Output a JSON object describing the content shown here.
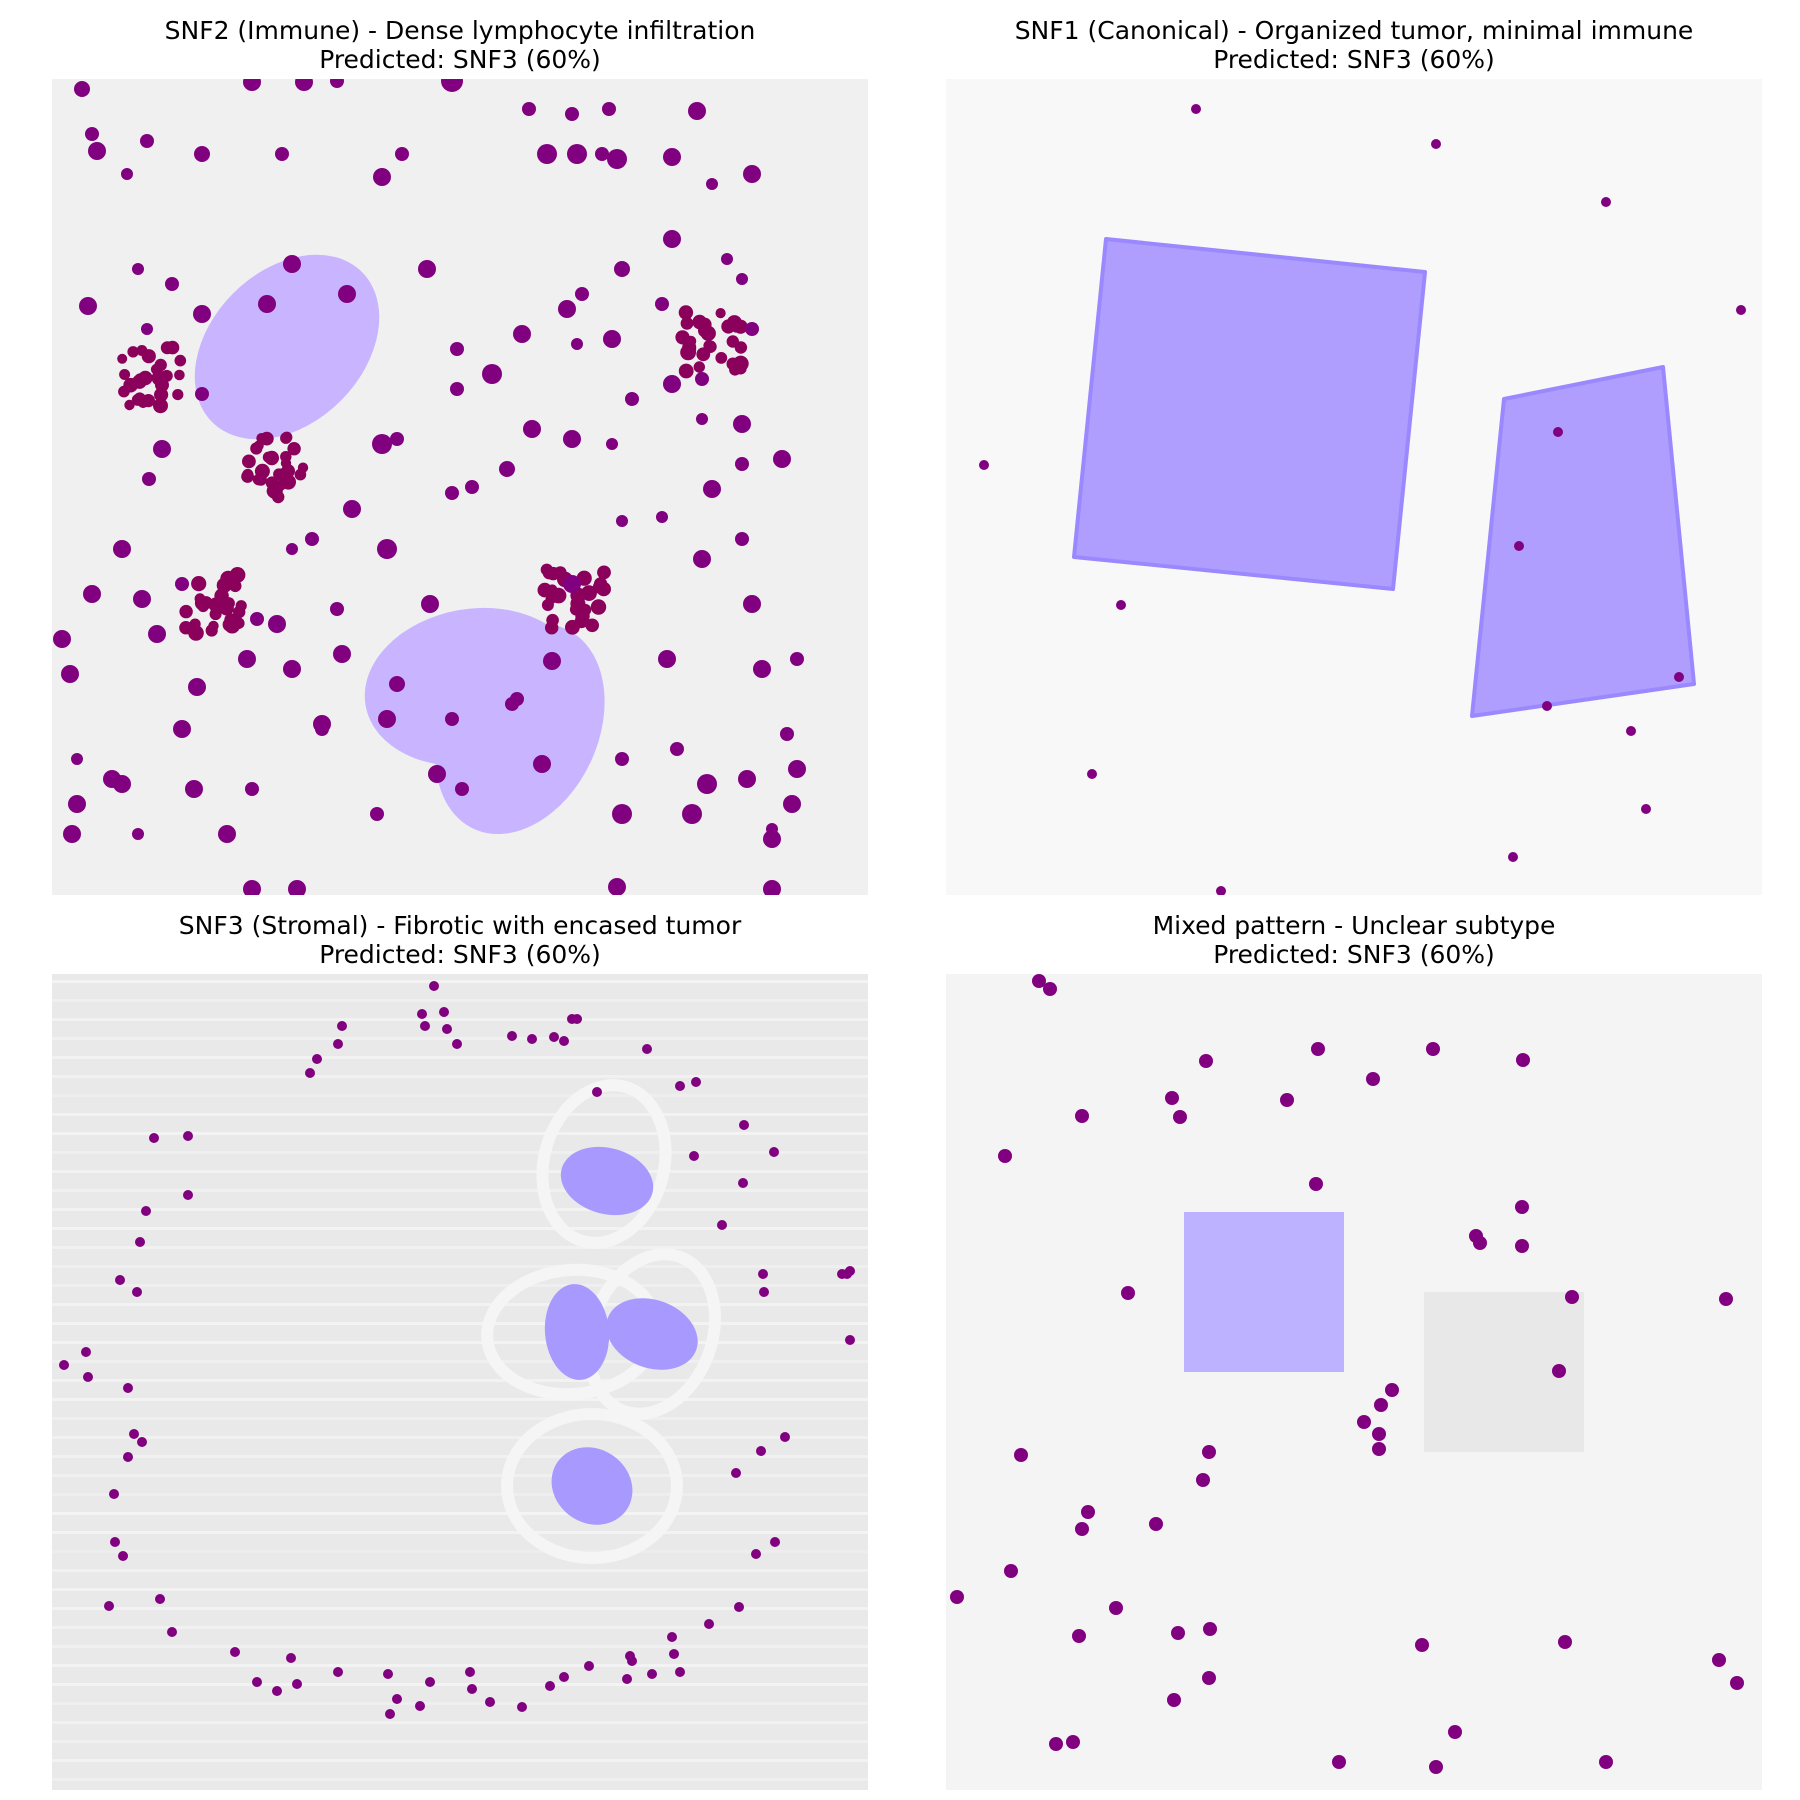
{
  "panels": [
    {
      "title": "SNF2 (Immune) - Dense lymphocyte infiltration",
      "prediction": "Predicted: SNF3 (60%)"
    },
    {
      "title": "SNF1 (Canonical) - Organized tumor, minimal immune",
      "prediction": "Predicted: SNF3 (60%)"
    },
    {
      "title": "SNF3 (Stromal) - Fibrotic with encased tumor",
      "prediction": "Predicted: SNF3 (60%)"
    },
    {
      "title": "Mixed pattern - Unclear subtype",
      "prediction": "Predicted: SNF3 (60%)"
    }
  ],
  "colors": {
    "panel1_background": "#f0f0f0",
    "panel2_background": "#f8f8f8",
    "panel3_background": "#e9e9e9",
    "panel4_background": "#f4f4f4",
    "immune_cell": "#800080",
    "lymphocyte_cluster": "#8b005a",
    "tumor_region_light": "#c8b4ff",
    "tumor_region_medium": "#b09eff",
    "tumor_region_dark": "#a899ff",
    "tumor_outline": "#9a88ff",
    "fibrotic_ring": "#f5f5f5",
    "stroma_streak": "#f7f7f7",
    "gray_region": "#e8e8e8"
  }
}
